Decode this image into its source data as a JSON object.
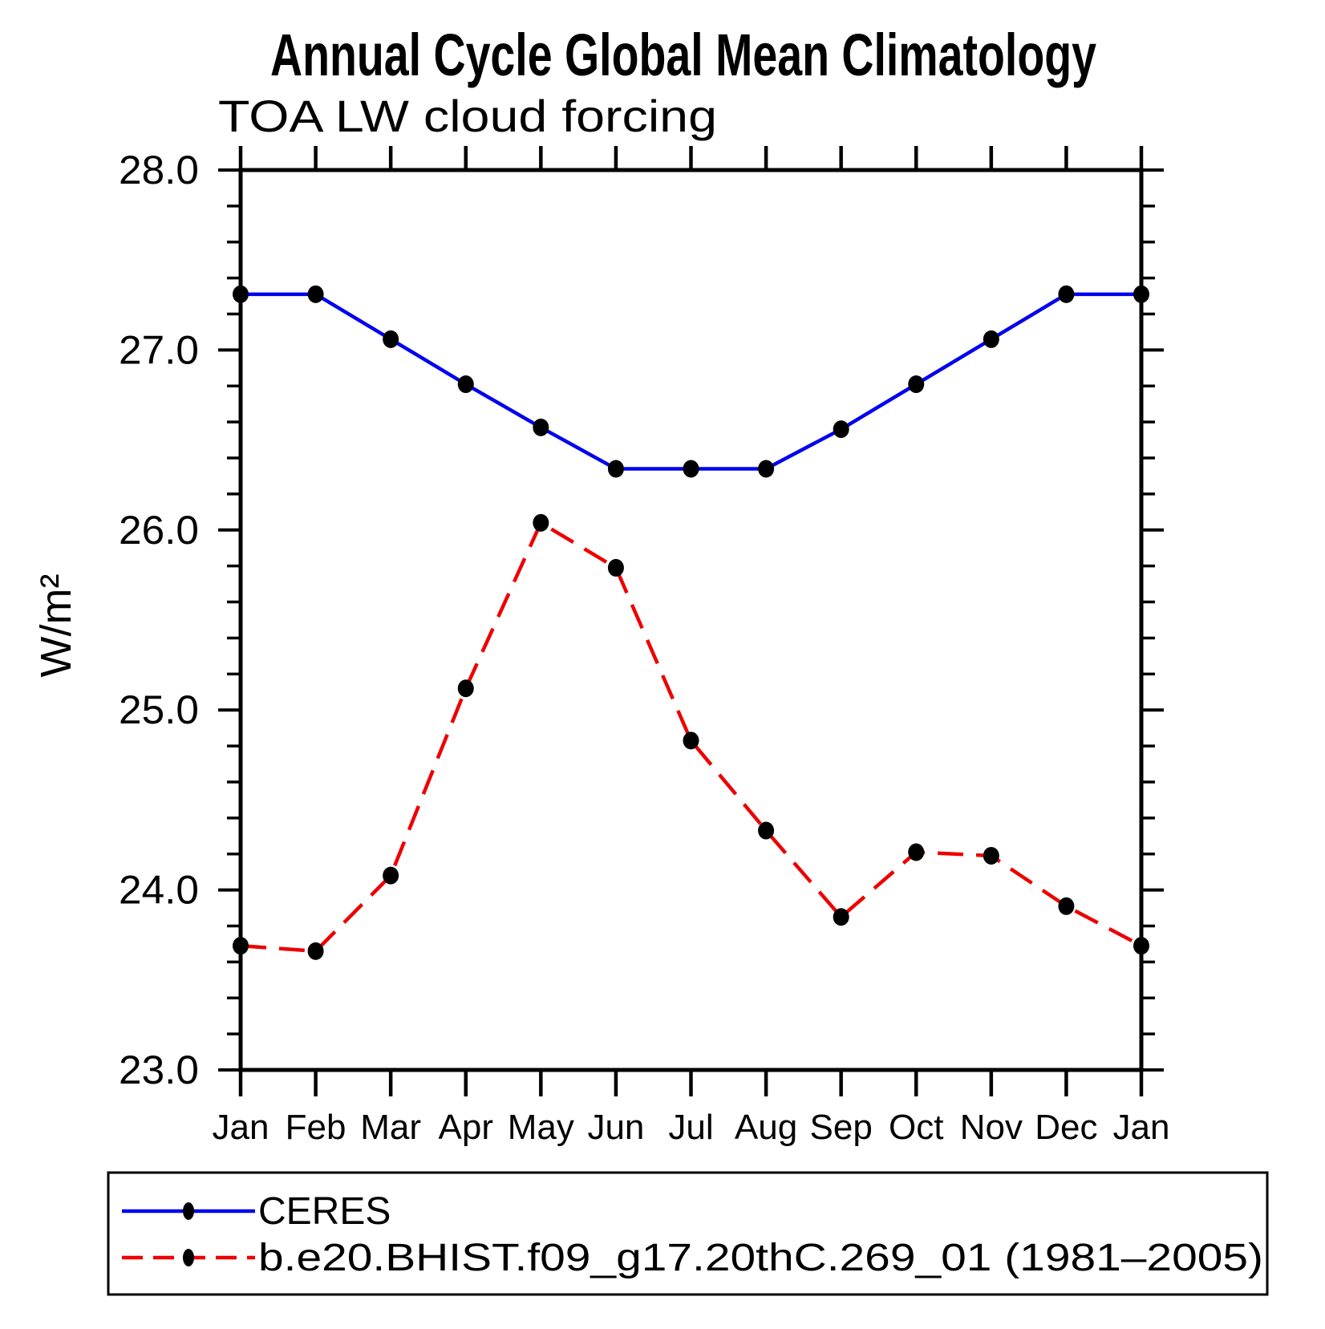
{
  "header": {
    "title": "Annual Cycle Global Mean Climatology",
    "subtitle": "TOA LW cloud forcing"
  },
  "chart_data": {
    "type": "line",
    "title": "Annual Cycle Global Mean Climatology",
    "subtitle": "TOA LW cloud forcing",
    "xlabel": "",
    "ylabel": "W/m²",
    "ylim": [
      23.0,
      28.0
    ],
    "ytick_labels": [
      "23.0",
      "24.0",
      "25.0",
      "26.0",
      "27.0",
      "28.0"
    ],
    "ytick_values": [
      23.0,
      24.0,
      25.0,
      26.0,
      27.0,
      28.0
    ],
    "ytick_minor_step": 0.2,
    "grid": false,
    "legend_position": "bottom",
    "categories": [
      "Jan",
      "Feb",
      "Mar",
      "Apr",
      "May",
      "Jun",
      "Jul",
      "Aug",
      "Sep",
      "Oct",
      "Nov",
      "Dec",
      "Jan"
    ],
    "series": [
      {
        "name": "CERES",
        "color": "#0000ee",
        "line_style": "solid",
        "marker": "filled-black-dot",
        "values": [
          27.31,
          27.31,
          27.06,
          26.81,
          26.57,
          26.34,
          26.34,
          26.34,
          26.56,
          26.81,
          27.06,
          27.31,
          27.31
        ]
      },
      {
        "name": "b.e20.BHIST.f09_g17.20thC.269_01 (1981–2005)",
        "color": "#ee0000",
        "line_style": "dashed",
        "marker": "filled-black-dot",
        "values": [
          23.69,
          23.66,
          24.08,
          25.12,
          26.04,
          25.79,
          24.83,
          24.33,
          23.85,
          24.21,
          24.19,
          23.91,
          23.69
        ]
      }
    ]
  },
  "colors": {
    "ceres_line": "#0000ee",
    "model_line": "#ee0000",
    "marker": "#000000",
    "axis": "#000000",
    "background": "#ffffff"
  }
}
